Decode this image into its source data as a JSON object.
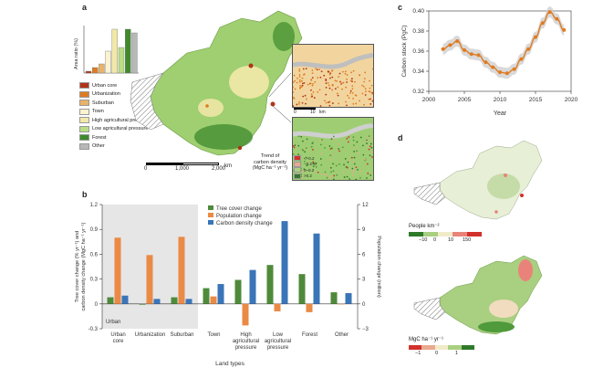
{
  "panels": {
    "a": "a",
    "b": "b",
    "c": "c",
    "d": "d"
  },
  "colors": {
    "urban_core": "#b0341a",
    "urbanization": "#e07b22",
    "suburban": "#e9b26a",
    "town": "#fbf2cf",
    "high_ag": "#f2e8a8",
    "low_ag": "#b9dd86",
    "forest": "#3e8a2c",
    "other": "#b8b8b8",
    "tree": "#4e8a3a",
    "pop": "#ea8a45",
    "carbon": "#3a75b8",
    "line": "#e07b22",
    "band": "#cfcfcf"
  },
  "panel_a": {
    "inset_ylabel": "Area ratio (%)",
    "inset_values": [
      1,
      3,
      5,
      12,
      24,
      14,
      24,
      22
    ],
    "legend": [
      {
        "key": "urban_core",
        "label": "Urban core"
      },
      {
        "key": "urbanization",
        "label": "Urbanization"
      },
      {
        "key": "suburban",
        "label": "Suburban"
      },
      {
        "key": "town",
        "label": "Town"
      },
      {
        "key": "high_ag",
        "label": "High agricultural pressure"
      },
      {
        "key": "low_ag",
        "label": "Low agricultural pressure"
      },
      {
        "key": "forest",
        "label": "Forest"
      },
      {
        "key": "other",
        "label": "Other"
      }
    ],
    "scalebar": {
      "start": "0",
      "mid": "1,000",
      "end": "2,000",
      "unit": "km"
    },
    "zoom_scale": {
      "start": "0",
      "mid": "10",
      "unit": "km"
    },
    "trend_title": [
      "Trend of",
      "carbon density",
      "(MgC ha⁻¹ yr⁻¹)"
    ],
    "trend_legend": [
      "<−0.2",
      "−0.2–0",
      "0–0.2",
      ">0.2"
    ]
  },
  "panel_d": {
    "map1_title": "People km⁻²",
    "map1_ticks": [
      "−10",
      "0",
      "10",
      "150"
    ],
    "map2_title": "MgC ha⁻¹ yr⁻¹",
    "map2_ticks": [
      "−1",
      "0",
      "1"
    ]
  },
  "chart_data": [
    {
      "type": "line",
      "panel": "c",
      "xlabel": "Year",
      "ylabel": "Carbon stock (PgC)",
      "xlim": [
        2000,
        2020
      ],
      "ylim": [
        0.32,
        0.4
      ],
      "xticks": [
        2000,
        2005,
        2010,
        2015,
        2020
      ],
      "yticks": [
        0.32,
        0.34,
        0.36,
        0.38,
        0.4
      ],
      "x": [
        2002,
        2003,
        2004,
        2005,
        2006,
        2007,
        2008,
        2009,
        2010,
        2011,
        2012,
        2013,
        2014,
        2015,
        2016,
        2017,
        2018,
        2019
      ],
      "y": [
        0.362,
        0.366,
        0.37,
        0.361,
        0.357,
        0.356,
        0.349,
        0.344,
        0.339,
        0.338,
        0.342,
        0.352,
        0.362,
        0.374,
        0.388,
        0.399,
        0.392,
        0.381
      ]
    },
    {
      "type": "bar",
      "panel": "b",
      "xlabel": "Land types",
      "ylabel_left": "Tree cover change (% yr⁻¹) and carbon density change (MgC ha⁻¹ yr⁻¹)",
      "ylabel_right": "Population change (million)",
      "ylim_left": [
        -0.3,
        1.2
      ],
      "ylim_right": [
        -3,
        12
      ],
      "yticks_left": [
        -0.3,
        0,
        0.3,
        0.6,
        0.9,
        1.2
      ],
      "yticks_right": [
        -3,
        0,
        3,
        6,
        9,
        12
      ],
      "categories": [
        "Urban core",
        "Urbanization",
        "Suburban",
        "Town",
        "High agricultural pressure",
        "Low agricultural pressure",
        "Forest",
        "Other"
      ],
      "category_labels": [
        [
          "Urban",
          "core"
        ],
        [
          "Urbanization"
        ],
        [
          "Suburban"
        ],
        [
          "Town"
        ],
        [
          "High",
          "agricultural",
          "pressure"
        ],
        [
          "Low",
          "agricultural",
          "pressure"
        ],
        [
          "Forest"
        ],
        [
          "Other"
        ]
      ],
      "urban_label": "Urban",
      "series": [
        {
          "name": "Tree cover change",
          "axis": "left",
          "values": [
            0.08,
            -0.01,
            0.08,
            0.19,
            0.29,
            0.47,
            0.36,
            0.14
          ]
        },
        {
          "name": "Population change",
          "axis": "right",
          "values": [
            8.0,
            5.9,
            8.1,
            0.9,
            -2.6,
            -0.9,
            -1.0,
            0
          ]
        },
        {
          "name": "Carbon density change",
          "axis": "left",
          "values": [
            0.1,
            0.06,
            0.06,
            0.24,
            0.41,
            1.0,
            0.85,
            0.13
          ]
        }
      ]
    }
  ]
}
